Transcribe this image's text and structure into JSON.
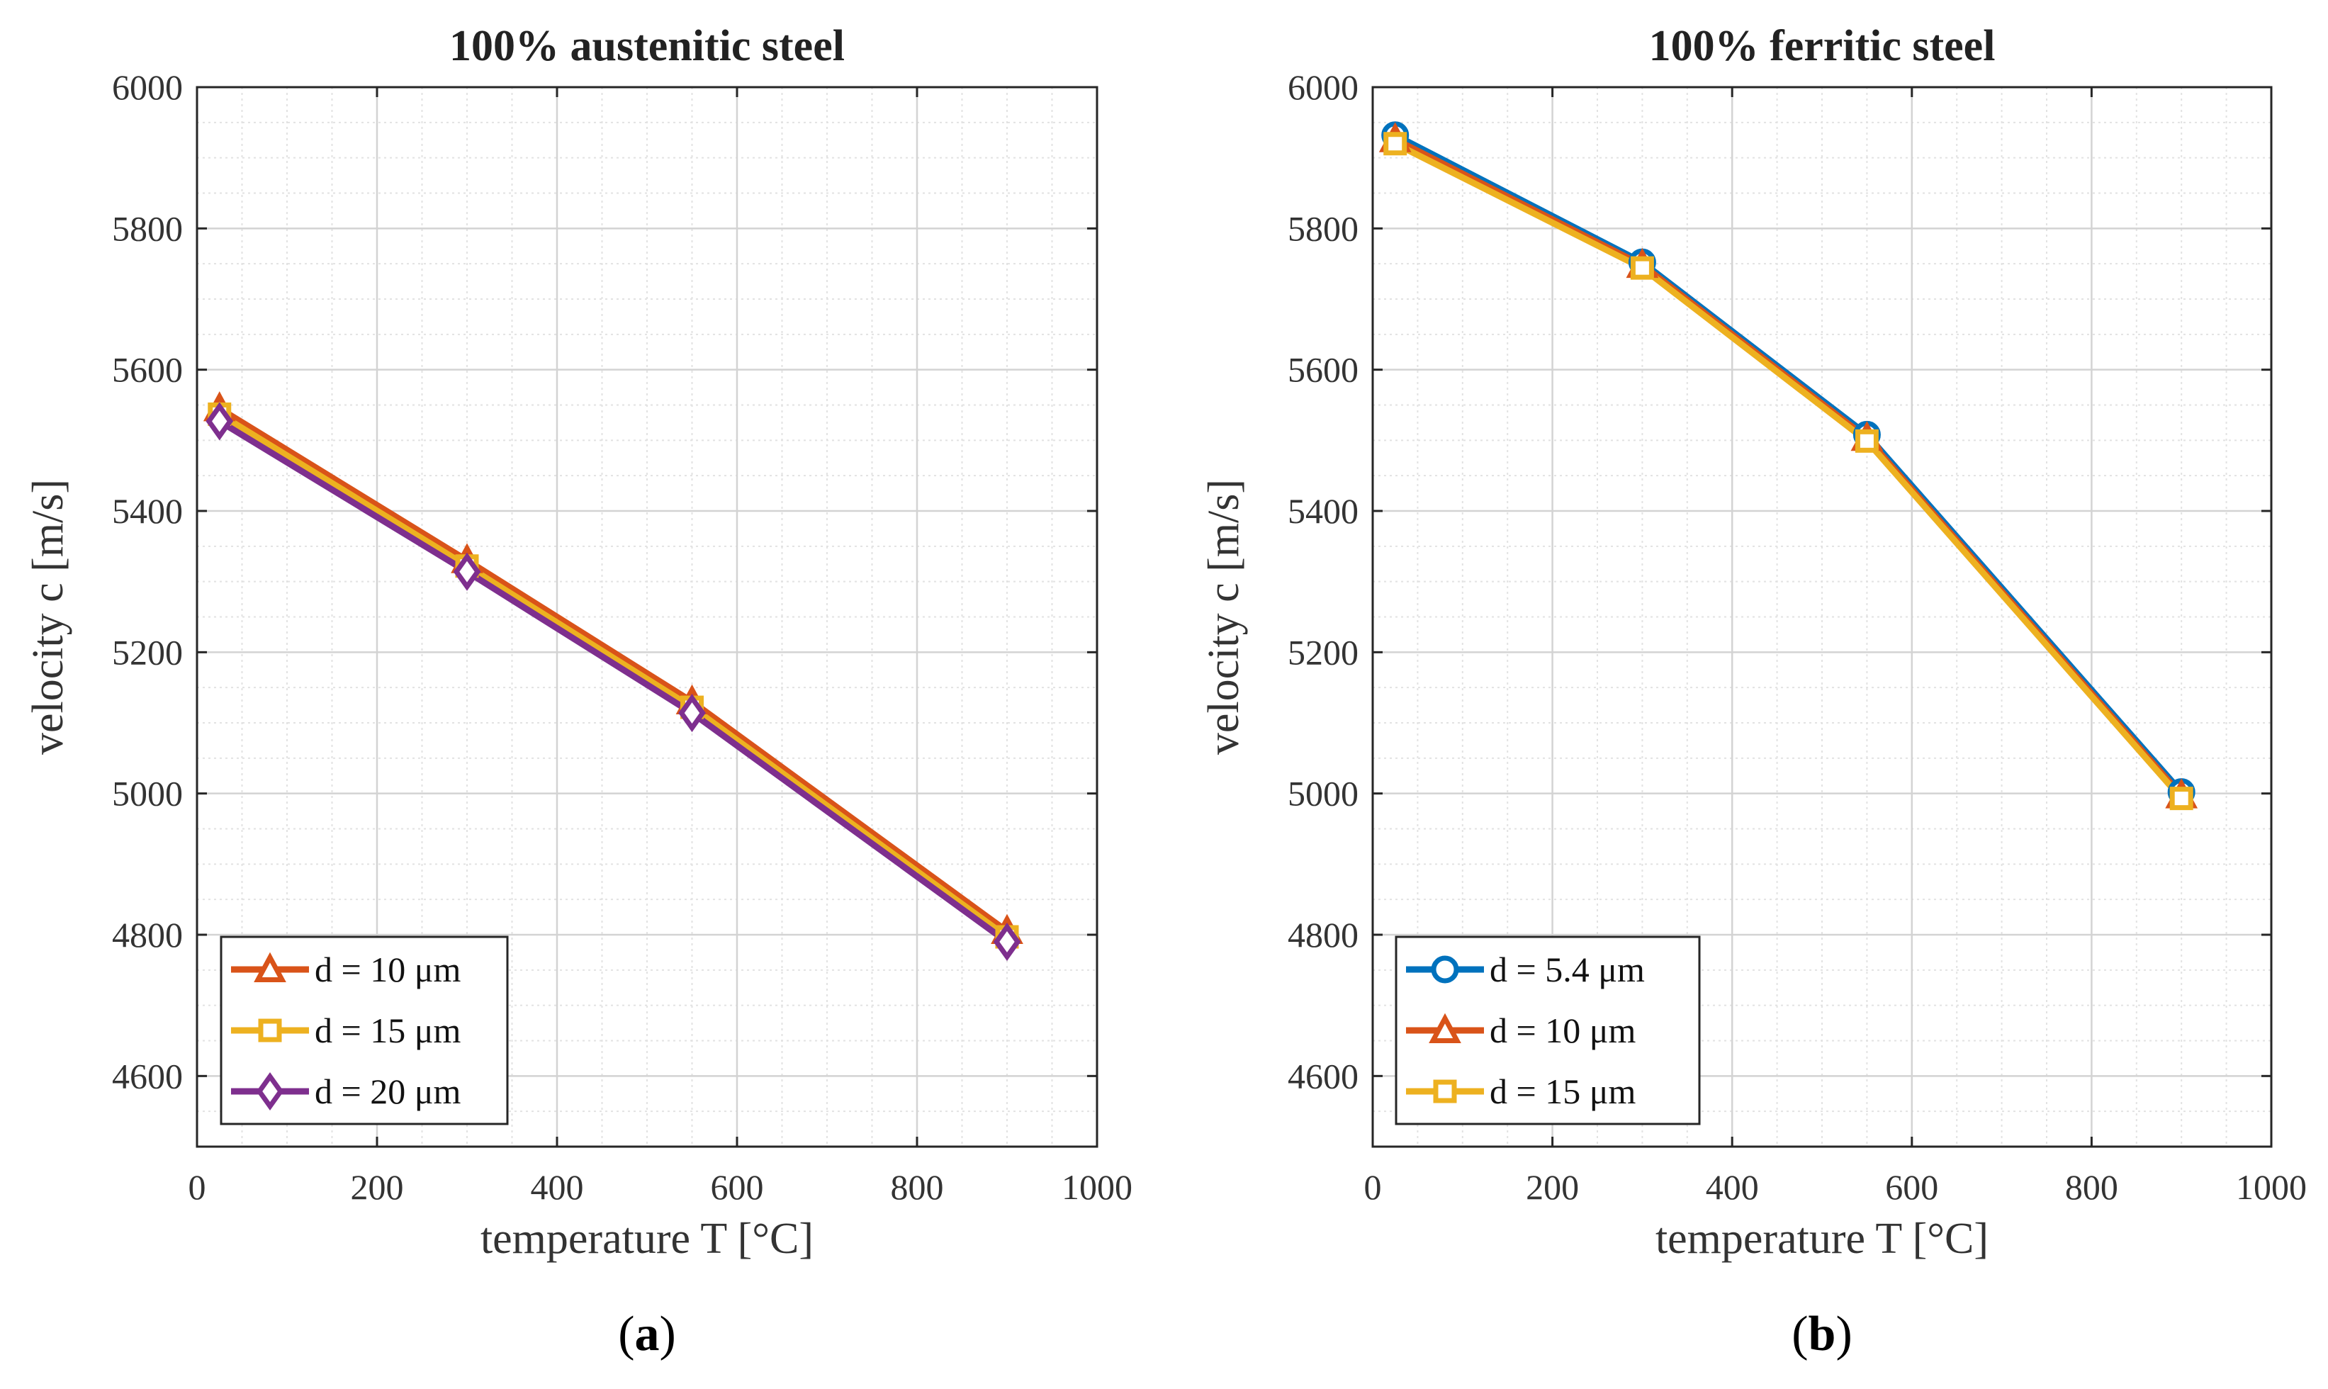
{
  "chart_data": [
    {
      "type": "line",
      "panel_label": "a",
      "title": "100% austenitic steel",
      "xlabel": "temperature T [°C]",
      "ylabel": "velocity c [m/s]",
      "xlim": [
        0,
        1000
      ],
      "ylim": [
        4500,
        6000
      ],
      "x_ticks": [
        0,
        200,
        400,
        600,
        800,
        1000
      ],
      "y_ticks": [
        4600,
        4800,
        5000,
        5200,
        5400,
        5600,
        5800,
        6000
      ],
      "grid": true,
      "minor_grid": true,
      "legend_position": "bottom-left",
      "series": [
        {
          "name": "d = 10 μm",
          "marker": "triangle",
          "color": "#D95319",
          "x": [
            25,
            300,
            550,
            900
          ],
          "y": [
            5545,
            5330,
            5130,
            4805
          ]
        },
        {
          "name": "d = 15 μm",
          "marker": "square",
          "color": "#EDB120",
          "x": [
            25,
            300,
            550,
            900
          ],
          "y": [
            5537,
            5322,
            5122,
            4797
          ]
        },
        {
          "name": "d = 20 μm",
          "marker": "diamond",
          "color": "#7E2F8E",
          "x": [
            25,
            300,
            550,
            900
          ],
          "y": [
            5527,
            5314,
            5114,
            4790
          ]
        }
      ]
    },
    {
      "type": "line",
      "panel_label": "b",
      "title": "100% ferritic steel",
      "xlabel": "temperature T [°C]",
      "ylabel": "velocity c [m/s]",
      "xlim": [
        0,
        1000
      ],
      "ylim": [
        4500,
        6000
      ],
      "x_ticks": [
        0,
        200,
        400,
        600,
        800,
        1000
      ],
      "y_ticks": [
        4600,
        4800,
        5000,
        5200,
        5400,
        5600,
        5800,
        6000
      ],
      "grid": true,
      "minor_grid": true,
      "legend_position": "bottom-left",
      "series": [
        {
          "name": "d = 5.4 μm",
          "marker": "circle",
          "color": "#0072BD",
          "x": [
            25,
            300,
            550,
            900
          ],
          "y": [
            5932,
            5752,
            5508,
            5002
          ]
        },
        {
          "name": "d = 10 μm",
          "marker": "triangle",
          "color": "#D95319",
          "x": [
            25,
            300,
            550,
            900
          ],
          "y": [
            5926,
            5748,
            5503,
            4997
          ]
        },
        {
          "name": "d = 15 μm",
          "marker": "square",
          "color": "#EDB120",
          "x": [
            25,
            300,
            550,
            900
          ],
          "y": [
            5920,
            5744,
            5499,
            4993
          ]
        }
      ]
    }
  ]
}
